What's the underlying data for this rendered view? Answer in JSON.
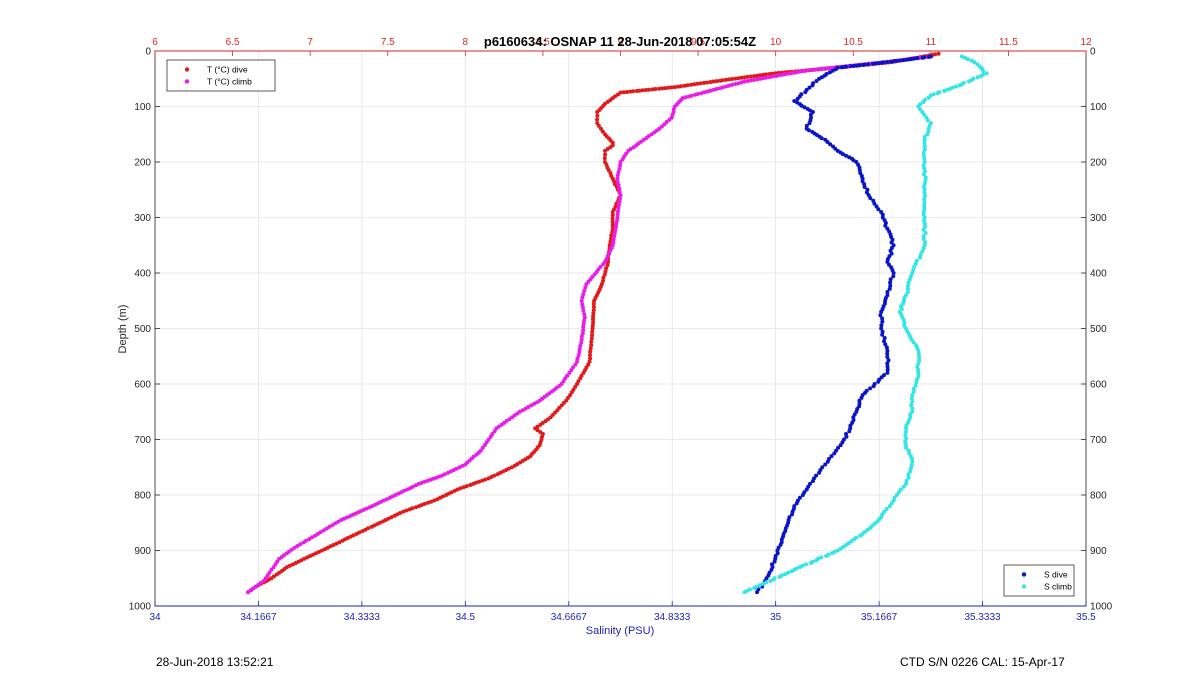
{
  "chart_data": {
    "type": "scatter",
    "title": "p6160634: OSNAP 11 28-Jun-2018 07:05:54Z",
    "ylabel": "Depth (m)",
    "ylim": [
      1000,
      0
    ],
    "yticks": [
      "0",
      "100",
      "200",
      "300",
      "400",
      "500",
      "600",
      "700",
      "800",
      "900",
      "1000"
    ],
    "grid": true,
    "colors": {
      "temp_axis": "#d62728",
      "sal_axis": "#1f1fb4",
      "t_dive": "#e31a1c",
      "t_climb": "#e81ee8",
      "s_dive": "#0a14c8",
      "s_climb": "#33e6e6"
    },
    "temperature_axis": {
      "position": "top",
      "xlim": [
        6,
        12
      ],
      "ticks": [
        "6",
        "6.5",
        "7",
        "7.5",
        "8",
        "8.5",
        "9",
        "9.5",
        "10",
        "10.5",
        "11",
        "11.5",
        "12"
      ]
    },
    "salinity_axis": {
      "position": "bottom",
      "xlabel": "Salinity (PSU)",
      "xlim": [
        34,
        35.5
      ],
      "ticks": [
        "34",
        "34.1667",
        "34.3333",
        "34.5",
        "34.6667",
        "34.8333",
        "35",
        "35.1667",
        "35.3333",
        "35.5"
      ]
    },
    "legends": [
      {
        "placement": "top-left",
        "entries": [
          "T (°C) dive",
          "T (°C) climb"
        ]
      },
      {
        "placement": "bottom-right",
        "entries": [
          "S dive",
          "S climb"
        ]
      }
    ],
    "series": [
      {
        "name": "T (°C) dive",
        "axis": "temperature",
        "color": "#e31a1c",
        "points": [
          [
            11.05,
            5
          ],
          [
            10.95,
            10
          ],
          [
            10.75,
            20
          ],
          [
            10.4,
            30
          ],
          [
            10.0,
            40
          ],
          [
            9.6,
            55
          ],
          [
            9.35,
            65
          ],
          [
            9.0,
            75
          ],
          [
            8.95,
            85
          ],
          [
            8.9,
            95
          ],
          [
            8.85,
            110
          ],
          [
            8.85,
            130
          ],
          [
            8.9,
            150
          ],
          [
            8.95,
            165
          ],
          [
            8.95,
            170
          ],
          [
            8.9,
            180
          ],
          [
            8.9,
            200
          ],
          [
            8.95,
            230
          ],
          [
            9.0,
            260
          ],
          [
            8.95,
            290
          ],
          [
            8.95,
            320
          ],
          [
            8.93,
            350
          ],
          [
            8.92,
            380
          ],
          [
            8.88,
            420
          ],
          [
            8.83,
            450
          ],
          [
            8.82,
            500
          ],
          [
            8.8,
            560
          ],
          [
            8.72,
            600
          ],
          [
            8.65,
            630
          ],
          [
            8.55,
            660
          ],
          [
            8.45,
            680
          ],
          [
            8.5,
            690
          ],
          [
            8.48,
            710
          ],
          [
            8.42,
            730
          ],
          [
            8.3,
            750
          ],
          [
            8.15,
            770
          ],
          [
            7.95,
            790
          ],
          [
            7.8,
            810
          ],
          [
            7.6,
            830
          ],
          [
            7.45,
            850
          ],
          [
            7.3,
            870
          ],
          [
            7.15,
            890
          ],
          [
            7.0,
            910
          ],
          [
            6.85,
            930
          ],
          [
            6.75,
            950
          ],
          [
            6.65,
            965
          ],
          [
            6.6,
            975
          ]
        ]
      },
      {
        "name": "T (°C) climb",
        "axis": "temperature",
        "color": "#e81ee8",
        "points": [
          [
            11.0,
            10
          ],
          [
            10.7,
            20
          ],
          [
            10.2,
            35
          ],
          [
            9.8,
            55
          ],
          [
            9.6,
            70
          ],
          [
            9.4,
            85
          ],
          [
            9.35,
            100
          ],
          [
            9.33,
            120
          ],
          [
            9.25,
            140
          ],
          [
            9.15,
            160
          ],
          [
            9.05,
            180
          ],
          [
            9.0,
            200
          ],
          [
            8.98,
            230
          ],
          [
            9.0,
            260
          ],
          [
            8.98,
            300
          ],
          [
            8.95,
            350
          ],
          [
            8.9,
            380
          ],
          [
            8.78,
            420
          ],
          [
            8.75,
            450
          ],
          [
            8.77,
            480
          ],
          [
            8.75,
            520
          ],
          [
            8.72,
            560
          ],
          [
            8.62,
            600
          ],
          [
            8.48,
            630
          ],
          [
            8.35,
            650
          ],
          [
            8.25,
            670
          ],
          [
            8.2,
            680
          ],
          [
            8.15,
            700
          ],
          [
            8.1,
            720
          ],
          [
            8.0,
            745
          ],
          [
            7.85,
            765
          ],
          [
            7.7,
            780
          ],
          [
            7.55,
            800
          ],
          [
            7.4,
            820
          ],
          [
            7.2,
            845
          ],
          [
            7.05,
            870
          ],
          [
            6.9,
            895
          ],
          [
            6.8,
            915
          ],
          [
            6.75,
            935
          ],
          [
            6.7,
            955
          ],
          [
            6.6,
            975
          ]
        ]
      },
      {
        "name": "S dive",
        "axis": "salinity",
        "color": "#0a14c8",
        "points": [
          [
            35.25,
            10
          ],
          [
            35.18,
            20
          ],
          [
            35.1,
            30
          ],
          [
            35.07,
            50
          ],
          [
            35.05,
            70
          ],
          [
            35.03,
            90
          ],
          [
            35.06,
            110
          ],
          [
            35.05,
            140
          ],
          [
            35.08,
            160
          ],
          [
            35.1,
            180
          ],
          [
            35.13,
            200
          ],
          [
            35.14,
            230
          ],
          [
            35.15,
            260
          ],
          [
            35.17,
            290
          ],
          [
            35.18,
            320
          ],
          [
            35.19,
            350
          ],
          [
            35.18,
            380
          ],
          [
            35.19,
            400
          ],
          [
            35.18,
            440
          ],
          [
            35.17,
            470
          ],
          [
            35.17,
            500
          ],
          [
            35.18,
            540
          ],
          [
            35.18,
            580
          ],
          [
            35.14,
            620
          ],
          [
            35.13,
            650
          ],
          [
            35.12,
            680
          ],
          [
            35.11,
            700
          ],
          [
            35.09,
            730
          ],
          [
            35.07,
            760
          ],
          [
            35.05,
            790
          ],
          [
            35.03,
            820
          ],
          [
            35.02,
            850
          ],
          [
            35.01,
            880
          ],
          [
            35.0,
            910
          ],
          [
            34.99,
            940
          ],
          [
            34.98,
            960
          ],
          [
            34.97,
            975
          ]
        ]
      },
      {
        "name": "S climb",
        "axis": "salinity",
        "color": "#33e6e6",
        "points": [
          [
            35.3,
            10
          ],
          [
            35.32,
            20
          ],
          [
            35.34,
            40
          ],
          [
            35.3,
            60
          ],
          [
            35.25,
            80
          ],
          [
            35.23,
            100
          ],
          [
            35.25,
            130
          ],
          [
            35.24,
            160
          ],
          [
            35.24,
            200
          ],
          [
            35.24,
            250
          ],
          [
            35.24,
            300
          ],
          [
            35.24,
            350
          ],
          [
            35.22,
            400
          ],
          [
            35.21,
            440
          ],
          [
            35.2,
            470
          ],
          [
            35.21,
            500
          ],
          [
            35.23,
            540
          ],
          [
            35.23,
            580
          ],
          [
            35.22,
            620
          ],
          [
            35.22,
            650
          ],
          [
            35.21,
            680
          ],
          [
            35.21,
            710
          ],
          [
            35.22,
            740
          ],
          [
            35.21,
            780
          ],
          [
            35.19,
            810
          ],
          [
            35.17,
            840
          ],
          [
            35.14,
            870
          ],
          [
            35.1,
            900
          ],
          [
            35.06,
            920
          ],
          [
            35.02,
            940
          ],
          [
            34.98,
            960
          ],
          [
            34.95,
            975
          ]
        ]
      }
    ]
  },
  "footer": {
    "timestamp": "28-Jun-2018 13:52:21",
    "instrument": "CTD S/N 0226  CAL: 15-Apr-17"
  }
}
